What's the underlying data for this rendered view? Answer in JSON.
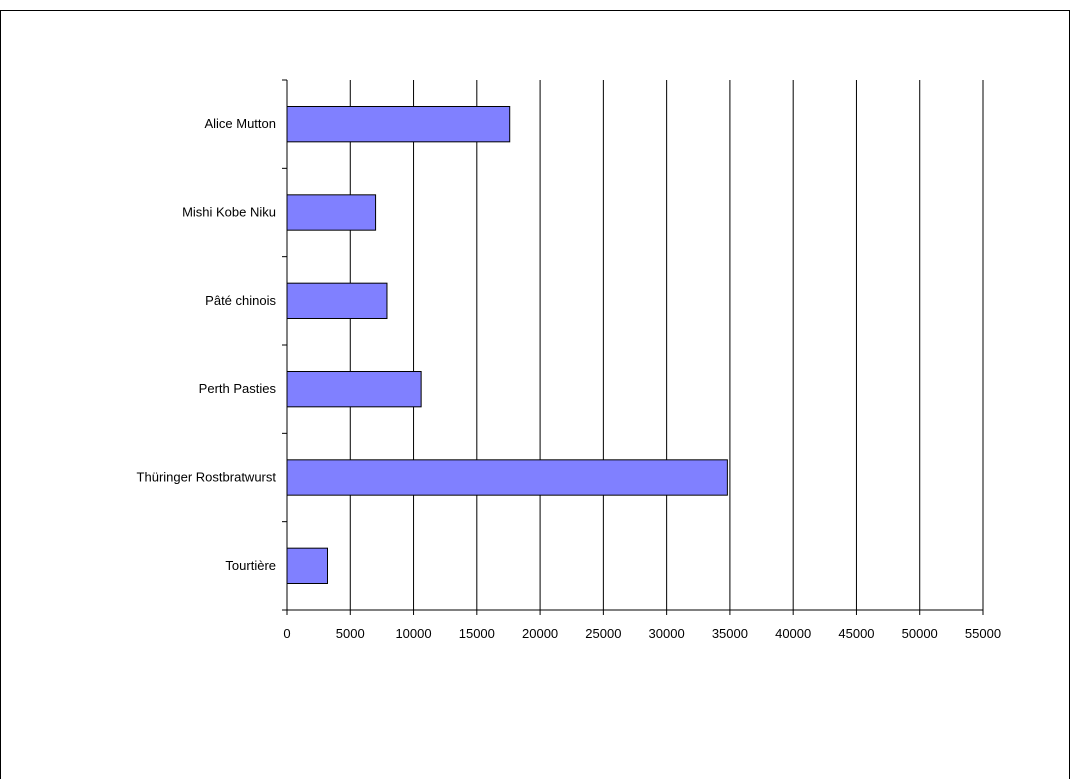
{
  "chart_data": {
    "type": "bar",
    "orientation": "horizontal",
    "categories": [
      "Alice Mutton",
      "Mishi Kobe Niku",
      "Pâté chinois",
      "Perth Pasties",
      "Thüringer Rostbratwurst",
      "Tourtière"
    ],
    "values": [
      17600,
      7000,
      7900,
      10600,
      34800,
      3200
    ],
    "xlim": [
      0,
      55000
    ],
    "x_ticks": [
      "0",
      "5000",
      "10000",
      "15000",
      "20000",
      "25000",
      "30000",
      "35000",
      "40000",
      "45000",
      "50000",
      "55000"
    ],
    "tick_values": [
      0,
      5000,
      10000,
      15000,
      20000,
      25000,
      30000,
      35000,
      40000,
      45000,
      50000,
      55000
    ],
    "title": "",
    "xlabel": "",
    "ylabel": "",
    "grid": "vertical major gridlines",
    "legend": "none"
  },
  "colors": {
    "bar_fill": "#8080ff",
    "bar_stroke": "#000000",
    "grid": "#000000",
    "background": "#ffffff"
  }
}
